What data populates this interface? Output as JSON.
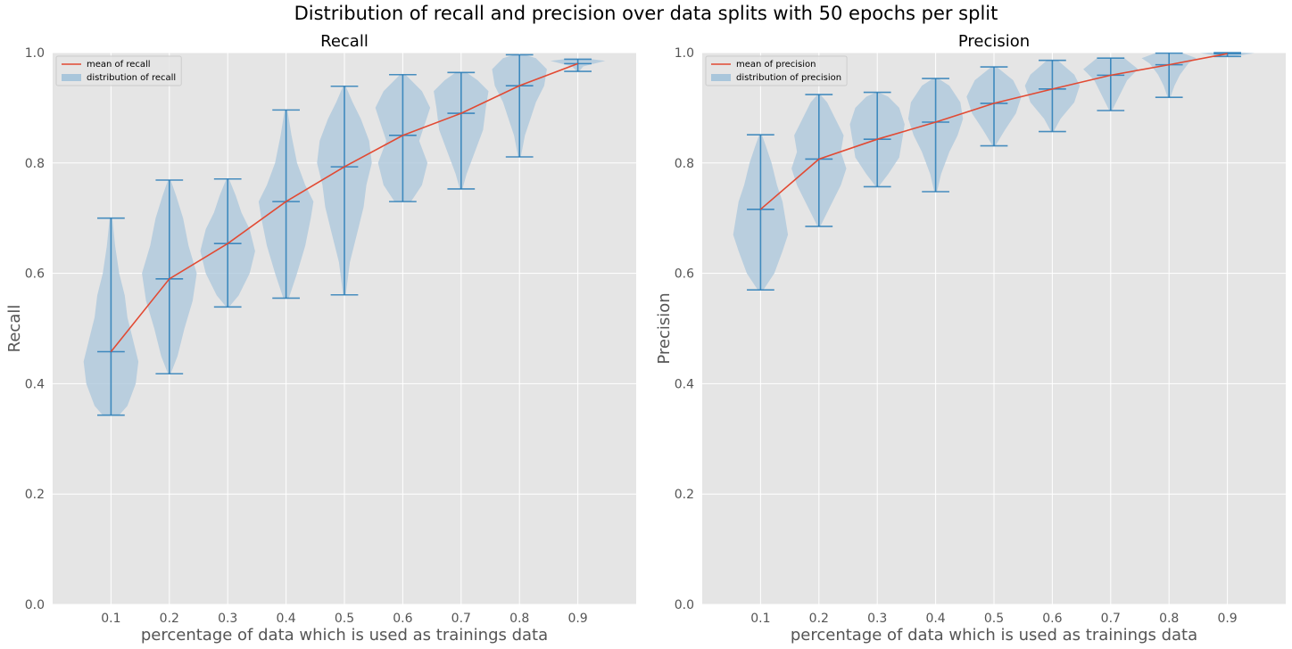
{
  "suptitle": "Distribution of recall and precision over data splits with 50 epochs per split",
  "colors": {
    "background": "#e5e5e5",
    "grid": "#ffffff",
    "violin_fill": "#a9c6db",
    "violin_edge": "#1f77b4",
    "mean_line": "#e24a33"
  },
  "chart_data": [
    {
      "type": "violin",
      "title": "Recall",
      "xlabel": "percentage of data which is used as trainings data",
      "ylabel": "Recall",
      "ylim": [
        0,
        1.0
      ],
      "yticks": [
        "0.0",
        "0.2",
        "0.4",
        "0.6",
        "0.8",
        "1.0"
      ],
      "categories": [
        "0.1",
        "0.2",
        "0.3",
        "0.4",
        "0.5",
        "0.6",
        "0.7",
        "0.8",
        "0.9"
      ],
      "legend": {
        "position": "top-left",
        "entries": [
          "mean of recall",
          "distribution of recall"
        ]
      },
      "series": [
        {
          "name": "mean of recall",
          "values": [
            0.458,
            0.59,
            0.654,
            0.73,
            0.793,
            0.85,
            0.89,
            0.94,
            0.98
          ]
        },
        {
          "name": "distribution of recall",
          "mins": [
            0.343,
            0.418,
            0.539,
            0.555,
            0.561,
            0.73,
            0.753,
            0.811,
            0.966
          ],
          "maxs": [
            0.7,
            0.769,
            0.771,
            0.896,
            0.939,
            0.96,
            0.964,
            0.996,
            0.988
          ],
          "profiles": [
            [
              [
                0.343,
                0.3
              ],
              [
                0.36,
                0.6
              ],
              [
                0.4,
                0.9
              ],
              [
                0.44,
                1.0
              ],
              [
                0.48,
                0.8
              ],
              [
                0.52,
                0.6
              ],
              [
                0.56,
                0.5
              ],
              [
                0.6,
                0.3
              ],
              [
                0.65,
                0.15
              ],
              [
                0.7,
                0.05
              ]
            ],
            [
              [
                0.418,
                0.05
              ],
              [
                0.45,
                0.3
              ],
              [
                0.5,
                0.55
              ],
              [
                0.55,
                0.85
              ],
              [
                0.6,
                1.0
              ],
              [
                0.65,
                0.7
              ],
              [
                0.7,
                0.5
              ],
              [
                0.74,
                0.25
              ],
              [
                0.769,
                0.05
              ]
            ],
            [
              [
                0.539,
                0.05
              ],
              [
                0.56,
                0.4
              ],
              [
                0.6,
                0.8
              ],
              [
                0.64,
                1.0
              ],
              [
                0.68,
                0.8
              ],
              [
                0.71,
                0.5
              ],
              [
                0.74,
                0.3
              ],
              [
                0.771,
                0.05
              ]
            ],
            [
              [
                0.555,
                0.1
              ],
              [
                0.6,
                0.4
              ],
              [
                0.65,
                0.7
              ],
              [
                0.7,
                0.9
              ],
              [
                0.73,
                1.0
              ],
              [
                0.76,
                0.7
              ],
              [
                0.8,
                0.4
              ],
              [
                0.85,
                0.2
              ],
              [
                0.896,
                0.05
              ]
            ],
            [
              [
                0.561,
                0.05
              ],
              [
                0.62,
                0.2
              ],
              [
                0.68,
                0.5
              ],
              [
                0.72,
                0.7
              ],
              [
                0.76,
                0.8
              ],
              [
                0.8,
                1.0
              ],
              [
                0.84,
                0.9
              ],
              [
                0.88,
                0.6
              ],
              [
                0.91,
                0.3
              ],
              [
                0.939,
                0.05
              ]
            ],
            [
              [
                0.73,
                0.3
              ],
              [
                0.76,
                0.7
              ],
              [
                0.8,
                0.9
              ],
              [
                0.84,
                0.6
              ],
              [
                0.87,
                0.8
              ],
              [
                0.9,
                1.0
              ],
              [
                0.93,
                0.7
              ],
              [
                0.96,
                0.1
              ]
            ],
            [
              [
                0.753,
                0.05
              ],
              [
                0.78,
                0.2
              ],
              [
                0.82,
                0.5
              ],
              [
                0.86,
                0.8
              ],
              [
                0.9,
                0.9
              ],
              [
                0.93,
                1.0
              ],
              [
                0.95,
                0.6
              ],
              [
                0.964,
                0.2
              ]
            ],
            [
              [
                0.811,
                0.05
              ],
              [
                0.85,
                0.2
              ],
              [
                0.88,
                0.4
              ],
              [
                0.91,
                0.6
              ],
              [
                0.94,
                0.9
              ],
              [
                0.97,
                1.0
              ],
              [
                0.99,
                0.6
              ],
              [
                0.996,
                0.2
              ]
            ],
            [
              [
                0.966,
                0.05
              ],
              [
                0.975,
                0.2
              ],
              [
                0.98,
                0.6
              ],
              [
                0.985,
                1.0
              ],
              [
                0.988,
                0.5
              ]
            ]
          ]
        }
      ]
    },
    {
      "type": "violin",
      "title": "Precision",
      "xlabel": "percentage of data which is used as trainings data",
      "ylabel": "Precision",
      "ylim": [
        0,
        1.0
      ],
      "yticks": [
        "0.0",
        "0.2",
        "0.4",
        "0.6",
        "0.8",
        "1.0"
      ],
      "categories": [
        "0.1",
        "0.2",
        "0.3",
        "0.4",
        "0.5",
        "0.6",
        "0.7",
        "0.8",
        "0.9"
      ],
      "legend": {
        "position": "top-left",
        "entries": [
          "mean of precision",
          "distribution of precision"
        ]
      },
      "series": [
        {
          "name": "mean of precision",
          "values": [
            0.716,
            0.807,
            0.843,
            0.874,
            0.908,
            0.934,
            0.959,
            0.978,
            0.998
          ]
        },
        {
          "name": "distribution of precision",
          "mins": [
            0.57,
            0.685,
            0.757,
            0.748,
            0.831,
            0.857,
            0.895,
            0.919,
            0.993
          ],
          "maxs": [
            0.851,
            0.924,
            0.928,
            0.953,
            0.974,
            0.986,
            0.99,
            0.999,
            1.0
          ],
          "profiles": [
            [
              [
                0.57,
                0.1
              ],
              [
                0.6,
                0.5
              ],
              [
                0.64,
                0.8
              ],
              [
                0.67,
                1.0
              ],
              [
                0.7,
                0.9
              ],
              [
                0.73,
                0.8
              ],
              [
                0.76,
                0.6
              ],
              [
                0.8,
                0.4
              ],
              [
                0.83,
                0.2
              ],
              [
                0.851,
                0.05
              ]
            ],
            [
              [
                0.685,
                0.05
              ],
              [
                0.72,
                0.4
              ],
              [
                0.76,
                0.8
              ],
              [
                0.79,
                1.0
              ],
              [
                0.82,
                0.8
              ],
              [
                0.85,
                0.9
              ],
              [
                0.88,
                0.6
              ],
              [
                0.91,
                0.3
              ],
              [
                0.924,
                0.05
              ]
            ],
            [
              [
                0.757,
                0.05
              ],
              [
                0.78,
                0.4
              ],
              [
                0.81,
                0.8
              ],
              [
                0.84,
                0.9
              ],
              [
                0.87,
                1.0
              ],
              [
                0.9,
                0.8
              ],
              [
                0.92,
                0.4
              ],
              [
                0.928,
                0.05
              ]
            ],
            [
              [
                0.748,
                0.05
              ],
              [
                0.78,
                0.2
              ],
              [
                0.82,
                0.5
              ],
              [
                0.85,
                0.8
              ],
              [
                0.88,
                1.0
              ],
              [
                0.91,
                0.9
              ],
              [
                0.94,
                0.5
              ],
              [
                0.953,
                0.1
              ]
            ],
            [
              [
                0.831,
                0.05
              ],
              [
                0.86,
                0.4
              ],
              [
                0.89,
                0.8
              ],
              [
                0.92,
                1.0
              ],
              [
                0.95,
                0.7
              ],
              [
                0.974,
                0.1
              ]
            ],
            [
              [
                0.857,
                0.05
              ],
              [
                0.88,
                0.3
              ],
              [
                0.91,
                0.8
              ],
              [
                0.94,
                1.0
              ],
              [
                0.96,
                0.8
              ],
              [
                0.986,
                0.2
              ]
            ],
            [
              [
                0.895,
                0.05
              ],
              [
                0.92,
                0.3
              ],
              [
                0.95,
                0.6
              ],
              [
                0.97,
                1.0
              ],
              [
                0.99,
                0.5
              ]
            ],
            [
              [
                0.919,
                0.05
              ],
              [
                0.94,
                0.2
              ],
              [
                0.96,
                0.4
              ],
              [
                0.98,
                0.7
              ],
              [
                0.99,
                1.0
              ],
              [
                0.999,
                0.5
              ]
            ],
            [
              [
                0.993,
                0.2
              ],
              [
                0.996,
                0.6
              ],
              [
                0.999,
                1.0
              ],
              [
                1.0,
                0.6
              ]
            ]
          ]
        }
      ]
    }
  ]
}
